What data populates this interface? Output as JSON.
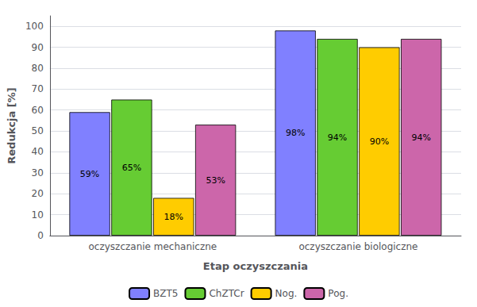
{
  "chart_data": {
    "type": "bar",
    "categories": [
      "oczyszczanie mechaniczne",
      "oczyszczanie biologiczne"
    ],
    "xlabel": "Etap oczyszczania",
    "ylabel": "Redukcja [%]",
    "series": [
      {
        "name": "BZT5",
        "color": "#8080FF",
        "values": [
          59,
          98
        ],
        "value_labels": [
          "59%",
          "98%"
        ]
      },
      {
        "name": "ChZTCr",
        "color": "#66CC33",
        "values": [
          65,
          94
        ],
        "value_labels": [
          "65%",
          "94%"
        ]
      },
      {
        "name": "Nog.",
        "color": "#FFCC00",
        "values": [
          18,
          90
        ],
        "value_labels": [
          "18%",
          "90%"
        ]
      },
      {
        "name": "Pog.",
        "color": "#CC66AA",
        "values": [
          53,
          94
        ],
        "value_labels": [
          "53%",
          "94%"
        ]
      }
    ],
    "ylim": [
      0,
      105
    ],
    "yticks": [
      0,
      10,
      20,
      30,
      40,
      50,
      60,
      70,
      80,
      90,
      100
    ],
    "grid": true,
    "legend": "bottom",
    "data_labels": true
  }
}
